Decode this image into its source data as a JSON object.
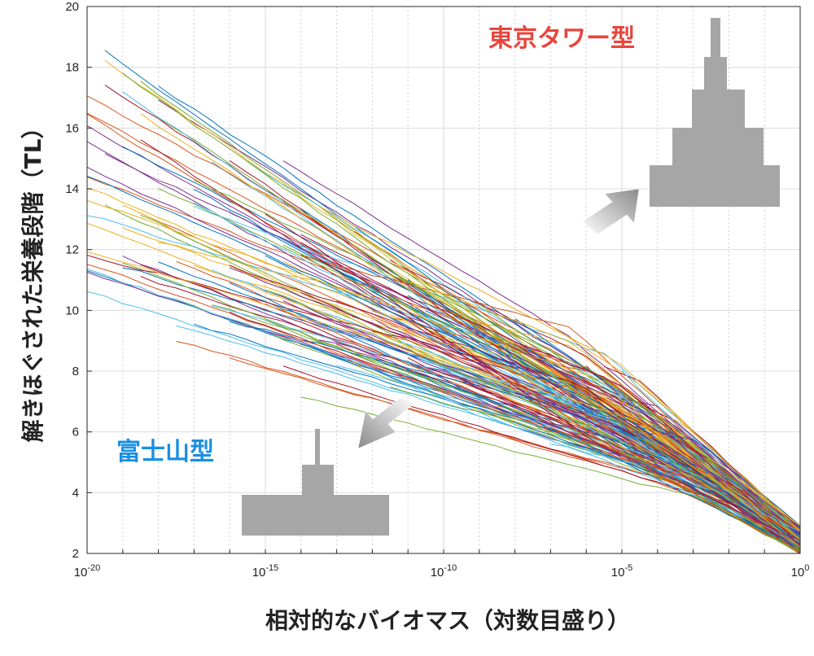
{
  "chart_data": {
    "type": "line",
    "title": "",
    "xlabel": "相対的なバイオマス（対数目盛り）",
    "ylabel": "解きほぐされた栄養段階（TL）",
    "xscale": "log",
    "xlim_log10": [
      -20,
      0
    ],
    "ylim": [
      2,
      20
    ],
    "x_ticks": [
      {
        "exp": -20,
        "base": "10",
        "sup": "-20"
      },
      {
        "exp": -15,
        "base": "10",
        "sup": "-15"
      },
      {
        "exp": -10,
        "base": "10",
        "sup": "-10"
      },
      {
        "exp": -5,
        "base": "10",
        "sup": "-5"
      },
      {
        "exp": 0,
        "base": "10",
        "sup": "0"
      }
    ],
    "y_ticks": [
      "2",
      "4",
      "6",
      "8",
      "10",
      "12",
      "14",
      "16",
      "18",
      "20"
    ],
    "grid": true,
    "series_count": 200,
    "series_colors": [
      "#0072BD",
      "#D95319",
      "#EDB120",
      "#7E2F8E",
      "#77AC30",
      "#4DBEEE",
      "#A2142F"
    ],
    "series_shape_note": "each series runs from relative biomass 10^0 at TL≈2–3 up to higher TL at lower biomass; steeper at low TL",
    "annotations": [
      {
        "text": "東京タワー型",
        "color": "#e8453c",
        "arrow": "pointing up-right",
        "pyramid": "tower"
      },
      {
        "text": "富士山型",
        "color": "#1a8fe3",
        "arrow": "pointing down-left",
        "pyramid": "mountain"
      }
    ]
  }
}
